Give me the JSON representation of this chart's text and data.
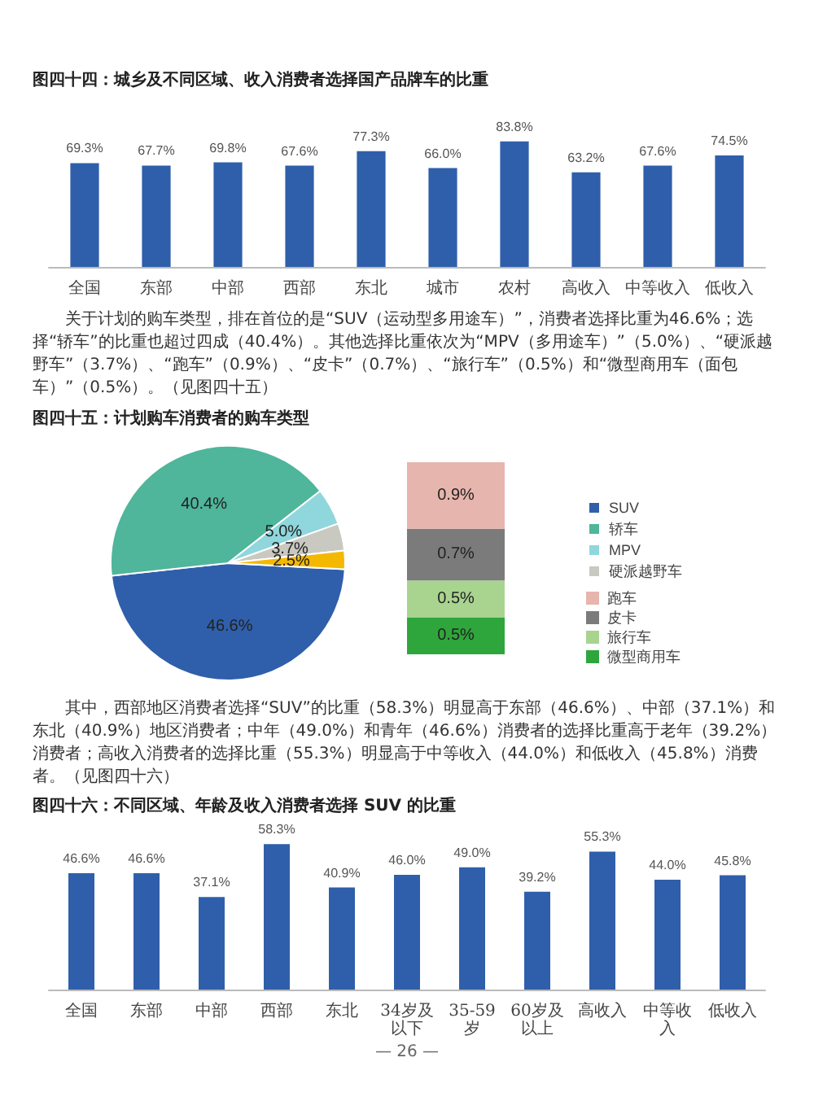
{
  "chart_data": [
    {
      "type": "bar",
      "title": "图四十四：城乡及不同区域、收入消费者选择国产品牌车的比重",
      "categories": [
        "全国",
        "东部",
        "中部",
        "西部",
        "东北",
        "城市",
        "农村",
        "高收入",
        "中等收入",
        "低收入"
      ],
      "values": [
        69.3,
        67.7,
        69.8,
        67.6,
        77.3,
        66.0,
        83.8,
        63.2,
        67.6,
        74.5
      ],
      "value_labels": [
        "69.3%",
        "67.7%",
        "69.8%",
        "67.6%",
        "77.3%",
        "66.0%",
        "83.8%",
        "63.2%",
        "67.6%",
        "74.5%"
      ],
      "color": "#2f5faa",
      "tick_labels": "x",
      "annotations": [
        "关于计划的购车类型，排在首位的是“SUV（运动型多用途车）”，消费者选择比重为46.6%；选择“轿车”的比重也超过四成（40.4%）。其他选择比重依次为“MPV（多用途车）”（5.0%）、“硬派越野车”（3.7%）、“跑车”（0.9%）、“皮卡”（0.7%）、“旅行车”（0.5%）和“微型商用车（面包车）”（0.5%）。（见图四十五）"
      ]
    },
    {
      "type": "pie",
      "title": "图四十五：计划购车消费者的购车类型",
      "categories": [
        "SUV",
        "轿车",
        "MPV",
        "硬派越野车",
        null
      ],
      "values": [
        46.6,
        40.4,
        5.0,
        3.7,
        2.5
      ],
      "value_labels": [
        "46.6%",
        "40.4%",
        "5.0%",
        "3.7%",
        "2.5%"
      ],
      "colors": [
        "#2f5faa",
        "#4fb59b",
        "#8fd7dc",
        "#c9c9c1",
        "#f5b800"
      ],
      "legend": "right"
    },
    {
      "type": "bar",
      "stacked": true,
      "tick_labels": false,
      "categories": [
        null
      ],
      "series": [
        {
          "name": "微型商用车",
          "color": "#2fa63c",
          "values": [
            0.5
          ],
          "value_labels": [
            "0.5%"
          ]
        },
        {
          "name": "旅行车",
          "color": "#a9d48f",
          "values": [
            0.5
          ],
          "value_labels": [
            "0.5%"
          ]
        },
        {
          "name": "皮卡",
          "color": "#7b7b7b",
          "values": [
            0.7
          ],
          "value_labels": [
            "0.7%"
          ]
        },
        {
          "name": "跑车",
          "color": "#e6b5ad",
          "values": [
            0.9
          ],
          "value_labels": [
            "0.9%"
          ]
        }
      ],
      "legend": "right",
      "annotations": [
        "其中，西部地区消费者选择“SUV”的比重（58.3%）明显高于东部（46.6%）、中部（37.1%）和东北（40.9%）地区消费者；中年（49.0%）和青年（46.6%）消费者的选择比重高于老年（39.2%）消费者；高收入消费者的选择比重（55.3%）明显高于中等收入（44.0%）和低收入（45.8%）消费者。（见图四十六）"
      ]
    },
    {
      "type": "bar",
      "title": "图四十六：不同区域、年龄及收入消费者选择 SUV 的比重",
      "categories": [
        "全国",
        "东部",
        "中部",
        "西部",
        "东北",
        "34岁及以下",
        "35-59岁",
        "60岁及以上",
        "高收入",
        "中等收入",
        "低收入"
      ],
      "values": [
        46.6,
        46.6,
        37.1,
        58.3,
        40.9,
        46.0,
        49.0,
        39.2,
        55.3,
        44.0,
        45.8
      ],
      "value_labels": [
        "46.6%",
        "46.6%",
        "37.1%",
        "58.3%",
        "40.9%",
        "46.0%",
        "49.0%",
        "39.2%",
        "55.3%",
        "44.0%",
        "45.8%"
      ],
      "color": "#2f5faa",
      "tick_labels": "x",
      "annotations": [
        "— 26 —"
      ]
    }
  ]
}
